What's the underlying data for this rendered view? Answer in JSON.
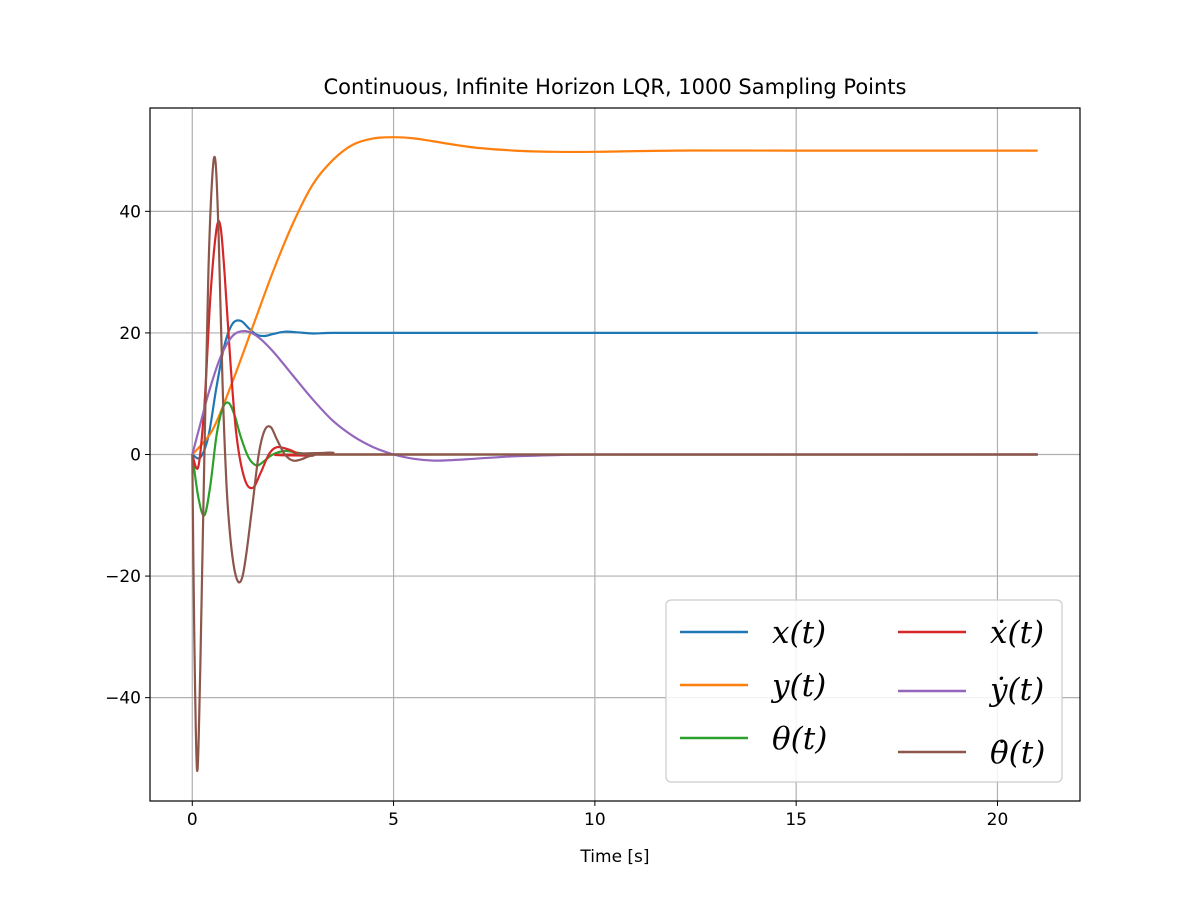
{
  "chart_data": {
    "type": "line",
    "title": "Continuous, Infinite Horizon LQR, 1000 Sampling Points",
    "xlabel": "Time [s]",
    "ylabel": "",
    "xlim": [
      -1.05,
      22.05
    ],
    "ylim": [
      -57,
      57
    ],
    "xticks": [
      0,
      5,
      10,
      15,
      20
    ],
    "xtick_labels": [
      "0",
      "5",
      "10",
      "15",
      "20"
    ],
    "yticks": [
      -40,
      -20,
      0,
      20,
      40
    ],
    "ytick_labels": [
      "−40",
      "−20",
      "0",
      "20",
      "40"
    ],
    "grid": true,
    "legend": {
      "placement": "lower-right",
      "columns": 2
    },
    "series": [
      {
        "name": "x(t)",
        "color": "#1f77b4",
        "x": [
          0,
          0.2,
          0.4,
          0.6,
          0.8,
          1.0,
          1.2,
          1.4,
          1.6,
          1.8,
          2.0,
          2.3,
          2.6,
          3.0,
          3.5,
          5,
          10,
          15,
          21
        ],
        "y": [
          0,
          -0.5,
          3,
          11,
          18,
          21.5,
          22,
          20.8,
          19.7,
          19.5,
          19.8,
          20.2,
          20.1,
          19.9,
          20,
          20,
          20,
          20,
          20
        ]
      },
      {
        "name": "y(t)",
        "color": "#ff7f0e",
        "x": [
          0,
          0.5,
          1.0,
          1.5,
          2.0,
          2.5,
          3.0,
          3.5,
          4.0,
          4.5,
          5.0,
          5.5,
          6.0,
          7.0,
          8.0,
          9.0,
          10,
          12,
          15,
          21
        ],
        "y": [
          0,
          4,
          12,
          21,
          30,
          38,
          44.5,
          48.5,
          51,
          52,
          52.2,
          52,
          51.5,
          50.5,
          50,
          49.8,
          49.8,
          50,
          50,
          50
        ]
      },
      {
        "name": "θ(t)",
        "color": "#2ca02c",
        "x": [
          0,
          0.15,
          0.3,
          0.45,
          0.6,
          0.75,
          0.9,
          1.05,
          1.2,
          1.4,
          1.6,
          1.8,
          2.0,
          2.3,
          2.6,
          3.0,
          3.5,
          21
        ],
        "y": [
          0,
          -7,
          -10,
          -5,
          3,
          7.5,
          8.5,
          6.5,
          3,
          -0.5,
          -1.8,
          -1,
          0,
          0.6,
          0.3,
          0,
          0,
          0
        ]
      },
      {
        "name": "ẋ(t)",
        "color": "#d62728",
        "x": [
          0,
          0.15,
          0.3,
          0.45,
          0.6,
          0.7,
          0.8,
          0.95,
          1.1,
          1.3,
          1.5,
          1.7,
          1.9,
          2.1,
          2.4,
          2.7,
          3.0,
          3.5,
          21
        ],
        "y": [
          0,
          -2,
          8,
          26,
          37,
          37.5,
          30,
          15,
          3,
          -4,
          -5.5,
          -3,
          0,
          1.2,
          0.8,
          0,
          -0.2,
          0,
          0
        ]
      },
      {
        "name": "ẏ(t)",
        "color": "#9467bd",
        "x": [
          0,
          0.2,
          0.4,
          0.7,
          1.0,
          1.3,
          1.6,
          2.0,
          2.5,
          3.0,
          3.5,
          4.0,
          4.5,
          5.0,
          5.5,
          6.0,
          6.5,
          7.0,
          8.0,
          9.0,
          10,
          15,
          21
        ],
        "y": [
          0,
          5,
          10,
          16,
          19.5,
          20.3,
          19.5,
          17,
          13,
          9,
          5.5,
          3,
          1.2,
          0,
          -0.7,
          -1,
          -0.9,
          -0.7,
          -0.3,
          -0.1,
          0,
          0,
          0
        ]
      },
      {
        "name": "θ̇(t)",
        "color": "#8c564b",
        "x": [
          0,
          0.05,
          0.12,
          0.2,
          0.3,
          0.4,
          0.5,
          0.58,
          0.66,
          0.75,
          0.85,
          0.95,
          1.05,
          1.15,
          1.25,
          1.35,
          1.5,
          1.65,
          1.8,
          1.95,
          2.1,
          2.3,
          2.5,
          2.7,
          2.9,
          3.2,
          3.5,
          4.0,
          21
        ],
        "y": [
          0,
          -30,
          -52,
          -35,
          0,
          30,
          46,
          48,
          35,
          12,
          -5,
          -14,
          -19,
          -21,
          -20,
          -16,
          -8,
          0,
          4,
          4.5,
          2.5,
          0,
          -1,
          -0.8,
          -0.3,
          0.2,
          0.3,
          0,
          0
        ]
      }
    ]
  }
}
